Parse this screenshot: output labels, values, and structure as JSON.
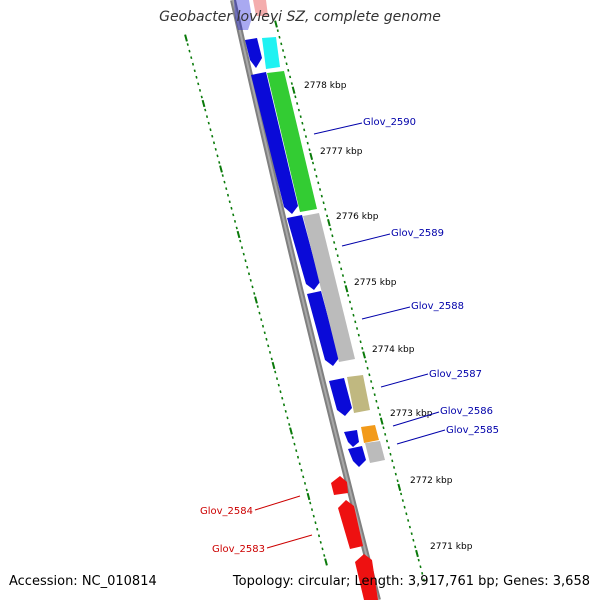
{
  "title": "Geobacter lovleyi SZ, complete genome",
  "accession": "Accession: NC_010814",
  "summary": "Topology: circular; Length: 3,917,761 bp; Genes: 3,658",
  "ticks": [
    "2778 kbp",
    "2777 kbp",
    "2776 kbp",
    "2775 kbp",
    "2774 kbp",
    "2773 kbp",
    "2772 kbp",
    "2771 kbp"
  ],
  "forward_genes": [
    "Glov_2590",
    "Glov_2589",
    "Glov_2588",
    "Glov_2587",
    "Glov_2586",
    "Glov_2585"
  ],
  "reverse_genes": [
    "Glov_2584",
    "Glov_2583"
  ],
  "colors": {
    "blue_cds": "#0a0ad8",
    "red_cds": "#ee1111",
    "green_feature": "#33cc33",
    "gray_feature": "#bbbbbb",
    "olive_feature": "#c0b880",
    "orange_feature": "#f29a1a",
    "cyan_feature": "#1ff2f2",
    "backbone": "#808080",
    "tick": "#0a7a0a",
    "forward_label": "#0000aa",
    "reverse_label": "#cc0000"
  }
}
